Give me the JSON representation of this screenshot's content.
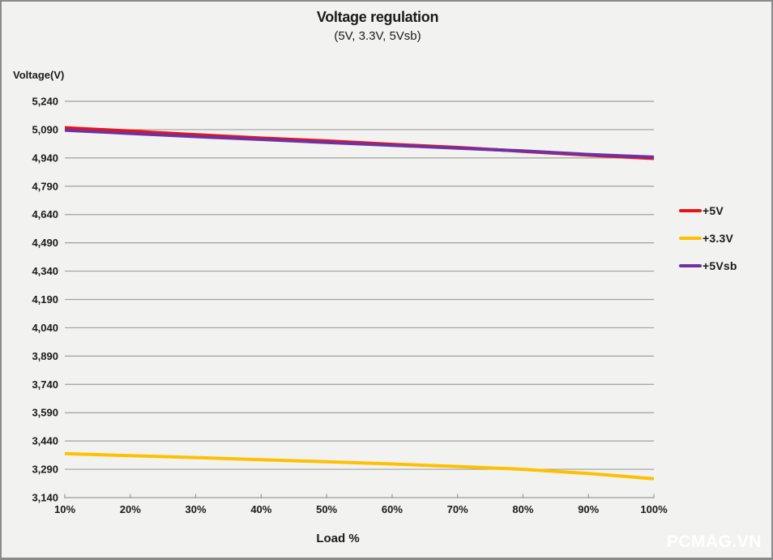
{
  "title": "Voltage regulation",
  "subtitle": "(5V, 3.3V, 5Vsb)",
  "y_axis_label": "Voltage(V)",
  "x_axis_label": "Load %",
  "watermark": "PCMAG.VN",
  "colors": {
    "background": "#f2f2f1",
    "frame": "#8b8b8b",
    "grid": "#a0a0a0",
    "axis": "#9a9a9a",
    "text": "#1a1a1a",
    "watermark": "#ffffff",
    "series_red": "#ee1111",
    "series_yellow": "#ffc000",
    "series_purple": "#7030a0"
  },
  "chart_data": {
    "type": "line",
    "title": "Voltage regulation",
    "subtitle": "(5V, 3.3V, 5Vsb)",
    "xlabel": "Load %",
    "ylabel": "Voltage(V)",
    "x": [
      10,
      20,
      30,
      40,
      50,
      60,
      70,
      80,
      90,
      100
    ],
    "x_tick_labels": [
      "10%",
      "20%",
      "30%",
      "40%",
      "50%",
      "60%",
      "70%",
      "80%",
      "90%",
      "100%"
    ],
    "ylim": [
      3140,
      5240
    ],
    "ytick_step": 150,
    "ytick_values": [
      5240,
      5090,
      4940,
      4790,
      4640,
      4490,
      4340,
      4190,
      4040,
      3890,
      3740,
      3590,
      3440,
      3290,
      3140
    ],
    "ytick_labels": [
      "5,240",
      "5,090",
      "4,940",
      "4,790",
      "4,640",
      "4,490",
      "4,340",
      "4,190",
      "4,040",
      "3,890",
      "3,740",
      "3,590",
      "3,440",
      "3,290",
      "3,140"
    ],
    "grid": "horizontal",
    "legend_position": "right",
    "series": [
      {
        "name": "+5V",
        "color": "#ee1111",
        "values": [
          5100,
          5082,
          5063,
          5045,
          5030,
          5012,
          4995,
          4975,
          4955,
          4937
        ]
      },
      {
        "name": "+3.3V",
        "color": "#ffc000",
        "values": [
          3373,
          3362,
          3352,
          3341,
          3330,
          3318,
          3305,
          3290,
          3268,
          3240
        ]
      },
      {
        "name": "+5Vsb",
        "color": "#7030a0",
        "values": [
          5087,
          5070,
          5053,
          5038,
          5022,
          5007,
          4992,
          4977,
          4958,
          4944
        ]
      }
    ],
    "draw_order": [
      0,
      1,
      2
    ]
  }
}
